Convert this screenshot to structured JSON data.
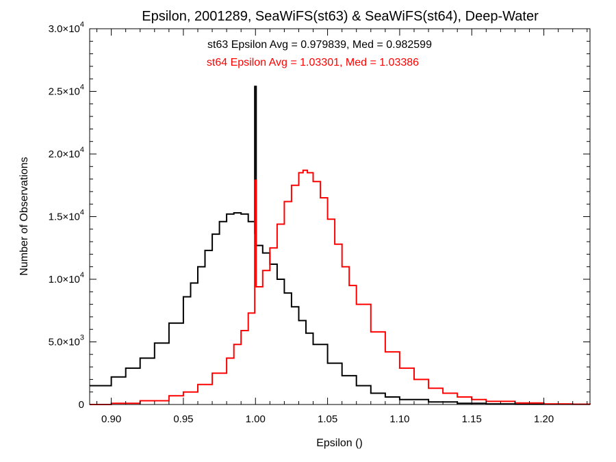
{
  "chart_data": {
    "type": "line",
    "title": "Epsilon, 2001289, SeaWiFS(st63) & SeaWiFS(st64), Deep-Water",
    "xlabel": "Epsilon ()",
    "ylabel": "Number of Observations",
    "xlim": [
      0.885,
      1.232
    ],
    "ylim": [
      0,
      30000
    ],
    "grid": false,
    "legend": "none",
    "x_ticks": [
      {
        "value": 0.9,
        "label": "0.90"
      },
      {
        "value": 0.95,
        "label": "0.95"
      },
      {
        "value": 1.0,
        "label": "1.00"
      },
      {
        "value": 1.05,
        "label": "1.05"
      },
      {
        "value": 1.1,
        "label": "1.10"
      },
      {
        "value": 1.15,
        "label": "1.15"
      },
      {
        "value": 1.2,
        "label": "1.20"
      }
    ],
    "y_ticks": [
      {
        "value": 0,
        "mantissa": "0",
        "exponent": ""
      },
      {
        "value": 5000,
        "mantissa": "5.0×10",
        "exponent": "3"
      },
      {
        "value": 10000,
        "mantissa": "1.0×10",
        "exponent": "4"
      },
      {
        "value": 15000,
        "mantissa": "1.5×10",
        "exponent": "4"
      },
      {
        "value": 20000,
        "mantissa": "2.0×10",
        "exponent": "4"
      },
      {
        "value": 25000,
        "mantissa": "2.5×10",
        "exponent": "4"
      },
      {
        "value": 30000,
        "mantissa": "3.0×10",
        "exponent": "4"
      }
    ],
    "annotations": [
      {
        "text": "st63 Epsilon Avg = 0.979839, Med = 0.982599",
        "color": "#000000"
      },
      {
        "text": "st64 Epsilon Avg = 1.03301, Med = 1.03386",
        "color": "#ff0000"
      }
    ],
    "series": [
      {
        "color": "#000000",
        "points": [
          [
            0.885,
            1500
          ],
          [
            0.9,
            2200
          ],
          [
            0.91,
            2900
          ],
          [
            0.92,
            3700
          ],
          [
            0.93,
            4900
          ],
          [
            0.94,
            6500
          ],
          [
            0.95,
            8600
          ],
          [
            0.955,
            9700
          ],
          [
            0.96,
            11000
          ],
          [
            0.965,
            12300
          ],
          [
            0.97,
            13600
          ],
          [
            0.975,
            14600
          ],
          [
            0.98,
            15200
          ],
          [
            0.985,
            15300
          ],
          [
            0.99,
            15200
          ],
          [
            0.995,
            14600
          ],
          [
            0.9995,
            13600
          ],
          [
            0.9995,
            25400
          ],
          [
            1.0005,
            25400
          ],
          [
            1.0005,
            12700
          ],
          [
            1.005,
            12100
          ],
          [
            1.01,
            11200
          ],
          [
            1.015,
            10000
          ],
          [
            1.02,
            8900
          ],
          [
            1.025,
            7800
          ],
          [
            1.03,
            6700
          ],
          [
            1.035,
            5700
          ],
          [
            1.04,
            4800
          ],
          [
            1.05,
            3300
          ],
          [
            1.06,
            2300
          ],
          [
            1.07,
            1500
          ],
          [
            1.08,
            900
          ],
          [
            1.09,
            600
          ],
          [
            1.1,
            400
          ],
          [
            1.12,
            200
          ],
          [
            1.14,
            100
          ],
          [
            1.16,
            50
          ],
          [
            1.18,
            20
          ],
          [
            1.232,
            0
          ]
        ]
      },
      {
        "color": "#ff0000",
        "points": [
          [
            0.885,
            0
          ],
          [
            0.9,
            100
          ],
          [
            0.92,
            300
          ],
          [
            0.94,
            700
          ],
          [
            0.95,
            1000
          ],
          [
            0.96,
            1600
          ],
          [
            0.97,
            2500
          ],
          [
            0.98,
            3700
          ],
          [
            0.985,
            4800
          ],
          [
            0.99,
            5900
          ],
          [
            0.995,
            7300
          ],
          [
            0.9995,
            8700
          ],
          [
            0.9995,
            17900
          ],
          [
            1.0005,
            17900
          ],
          [
            1.0005,
            9400
          ],
          [
            1.005,
            10700
          ],
          [
            1.01,
            12500
          ],
          [
            1.015,
            14400
          ],
          [
            1.02,
            16200
          ],
          [
            1.025,
            17500
          ],
          [
            1.03,
            18500
          ],
          [
            1.033,
            18700
          ],
          [
            1.036,
            18500
          ],
          [
            1.04,
            17800
          ],
          [
            1.045,
            16500
          ],
          [
            1.05,
            14800
          ],
          [
            1.055,
            12800
          ],
          [
            1.06,
            11000
          ],
          [
            1.065,
            9500
          ],
          [
            1.07,
            8000
          ],
          [
            1.08,
            5800
          ],
          [
            1.09,
            4200
          ],
          [
            1.1,
            2900
          ],
          [
            1.11,
            2000
          ],
          [
            1.12,
            1300
          ],
          [
            1.13,
            900
          ],
          [
            1.14,
            600
          ],
          [
            1.15,
            400
          ],
          [
            1.16,
            250
          ],
          [
            1.18,
            120
          ],
          [
            1.2,
            50
          ],
          [
            1.22,
            20
          ],
          [
            1.232,
            0
          ]
        ]
      }
    ]
  }
}
